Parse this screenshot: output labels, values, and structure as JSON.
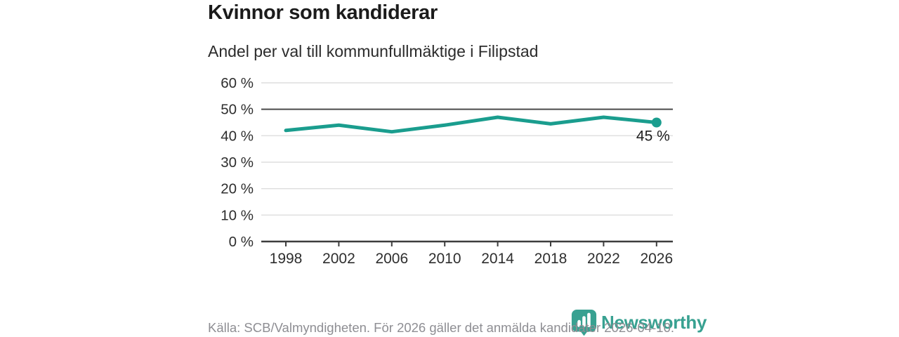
{
  "header": {
    "title": "Kvinnor som kandiderar",
    "subtitle": "Andel per val till kommunfullmäktige i Filipstad"
  },
  "footer": {
    "source": "Källa: SCB/Valmyndigheten. För 2026 gäller det anmälda kandidater 2026-04-10.",
    "logo_text": "Newsworthy"
  },
  "colors": {
    "line": "#1a9d8e",
    "reference_line": "#4a4a4a",
    "grid": "#dedede",
    "axis": "#3d3d3d",
    "tick_label": "#2e2e2e",
    "annotation_text": "#1f1f1f",
    "muted_text": "#8e8e93",
    "logo": "#38a191"
  },
  "chart_data": {
    "type": "line",
    "title": "Kvinnor som kandiderar",
    "subtitle": "Andel per val till kommunfullmäktige i Filipstad",
    "categories": [
      "1998",
      "2002",
      "2006",
      "2010",
      "2014",
      "2018",
      "2022",
      "2026"
    ],
    "values": [
      42,
      44,
      41.5,
      44,
      47,
      44.5,
      47,
      45
    ],
    "xlabel": "",
    "ylabel": "",
    "ylim": [
      0,
      60
    ],
    "ytick_step": 10,
    "ytick_suffix": " %",
    "reference_line": 50,
    "grid": true,
    "legend": false,
    "end_label": "45 %",
    "end_marker": true
  }
}
